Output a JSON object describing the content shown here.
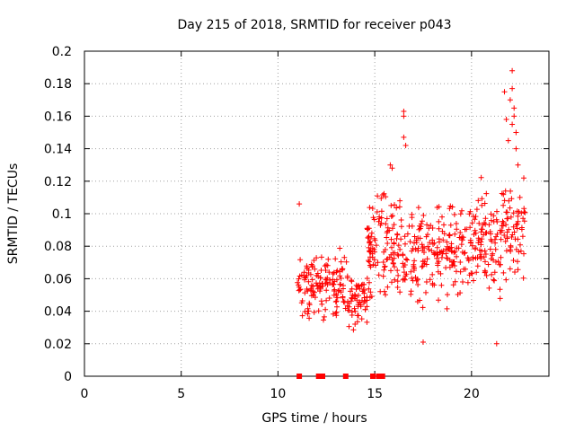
{
  "chart_data": {
    "type": "scatter",
    "title": "Day 215 of 2018, SRMTID for receiver p043",
    "xlabel": "GPS time / hours",
    "ylabel": "SRMTID / TECUs",
    "xlim": [
      0,
      24
    ],
    "ylim": [
      0,
      0.2
    ],
    "grid": true,
    "marker": "+",
    "color": "#ff0000",
    "x_ticks": [
      0,
      5,
      10,
      15,
      20
    ],
    "x_tick_labels": [
      "0",
      "5",
      "10",
      "15",
      "20"
    ],
    "y_ticks": [
      0,
      0.02,
      0.04,
      0.06,
      0.08,
      0.1,
      0.12,
      0.14,
      0.16,
      0.18,
      0.2
    ],
    "y_tick_labels": [
      "0",
      "0.02",
      "0.04",
      "0.06",
      "0.08",
      "0.1",
      "0.12",
      "0.14",
      "0.16",
      "0.18",
      "0.2"
    ],
    "zero_points_x": [
      11.1,
      12.1,
      12.2,
      12.3,
      13.5,
      14.9,
      15.2,
      15.3,
      15.4
    ],
    "segments": [
      {
        "x_start": 11.0,
        "x_end": 12.2,
        "y_low": 0.025,
        "y_high": 0.088,
        "count": 70
      },
      {
        "x_start": 12.2,
        "x_end": 13.6,
        "y_low": 0.03,
        "y_high": 0.083,
        "count": 80
      },
      {
        "x_start": 13.6,
        "x_end": 14.6,
        "y_low": 0.023,
        "y_high": 0.07,
        "count": 60
      },
      {
        "x_start": 14.6,
        "x_end": 15.6,
        "y_low": 0.035,
        "y_high": 0.126,
        "count": 70
      },
      {
        "x_start": 15.6,
        "x_end": 16.4,
        "y_low": 0.04,
        "y_high": 0.12,
        "count": 50
      },
      {
        "x_start": 16.4,
        "x_end": 17.6,
        "y_low": 0.035,
        "y_high": 0.11,
        "count": 70
      },
      {
        "x_start": 17.6,
        "x_end": 19.0,
        "y_low": 0.035,
        "y_high": 0.12,
        "count": 80
      },
      {
        "x_start": 19.0,
        "x_end": 20.5,
        "y_low": 0.04,
        "y_high": 0.12,
        "count": 80
      },
      {
        "x_start": 20.5,
        "x_end": 21.5,
        "y_low": 0.03,
        "y_high": 0.13,
        "count": 60
      },
      {
        "x_start": 21.5,
        "x_end": 22.8,
        "y_low": 0.045,
        "y_high": 0.135,
        "count": 70
      }
    ],
    "outliers": [
      {
        "x": 11.1,
        "y": 0.106
      },
      {
        "x": 15.8,
        "y": 0.13
      },
      {
        "x": 15.9,
        "y": 0.128
      },
      {
        "x": 16.5,
        "y": 0.163
      },
      {
        "x": 16.5,
        "y": 0.16
      },
      {
        "x": 16.5,
        "y": 0.147
      },
      {
        "x": 16.6,
        "y": 0.142
      },
      {
        "x": 17.5,
        "y": 0.021
      },
      {
        "x": 21.3,
        "y": 0.02
      },
      {
        "x": 21.7,
        "y": 0.175
      },
      {
        "x": 21.8,
        "y": 0.158
      },
      {
        "x": 22.0,
        "y": 0.17
      },
      {
        "x": 22.1,
        "y": 0.188
      },
      {
        "x": 22.1,
        "y": 0.177
      },
      {
        "x": 22.2,
        "y": 0.165
      },
      {
        "x": 22.2,
        "y": 0.16
      },
      {
        "x": 22.3,
        "y": 0.15
      },
      {
        "x": 22.3,
        "y": 0.14
      },
      {
        "x": 22.1,
        "y": 0.155
      },
      {
        "x": 21.9,
        "y": 0.145
      },
      {
        "x": 22.4,
        "y": 0.13
      },
      {
        "x": 22.5,
        "y": 0.11
      },
      {
        "x": 22.7,
        "y": 0.122
      }
    ]
  }
}
